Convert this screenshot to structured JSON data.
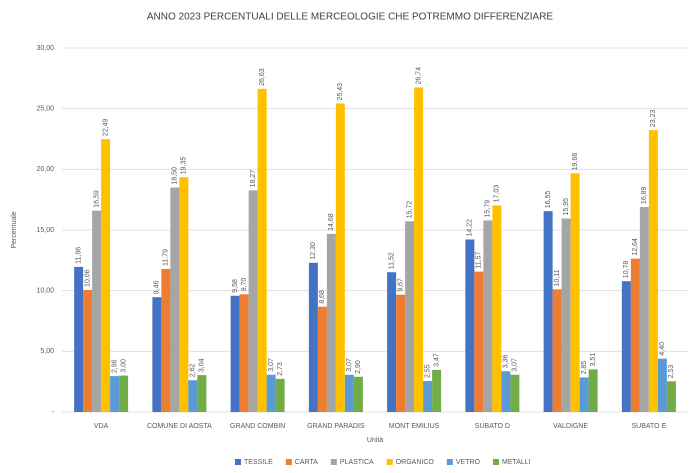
{
  "chart_data": {
    "type": "bar",
    "title": "ANNO 2023 PERCENTUALI DELLE MERCEOLOGIE CHE POTREMMO DIFFERENZIARE",
    "x_label": "Unità",
    "y_label": "Percentuale",
    "categories": [
      "VDA",
      "COMUNE DI AOSTA",
      "GRAND COMBIN",
      "GRAND PARADIS",
      "MONT EMILIUS",
      "SUBATO D",
      "VALDIGNE",
      "SUBATO E"
    ],
    "series": [
      {
        "name": "TESSILE",
        "color": "#4472c4",
        "values": [
          11.96,
          9.46,
          9.58,
          12.3,
          11.52,
          14.22,
          16.55,
          10.78
        ],
        "value_labels": [
          "11,96",
          "9,46",
          "9,58",
          "12,30",
          "11,52",
          "14,22",
          "16,55",
          "10,78"
        ]
      },
      {
        "name": "CARTA",
        "color": "#ed7d31",
        "values": [
          10.06,
          11.79,
          9.7,
          8.68,
          9.67,
          11.57,
          10.11,
          12.64
        ],
        "value_labels": [
          "10,06",
          "11,79",
          "9,70",
          "8,68",
          "9,67",
          "11,57",
          "10,11",
          "12,64"
        ]
      },
      {
        "name": "PLASTICA",
        "color": "#a5a5a5",
        "values": [
          16.59,
          18.5,
          18.27,
          14.68,
          15.72,
          15.79,
          15.95,
          16.89
        ],
        "value_labels": [
          "16,59",
          "18,50",
          "18,27",
          "14,68",
          "15,72",
          "15,79",
          "15,95",
          "16,89"
        ]
      },
      {
        "name": "ORGANICO",
        "color": "#ffc000",
        "values": [
          22.49,
          19.35,
          26.63,
          25.43,
          26.74,
          17.03,
          19.68,
          23.23
        ],
        "value_labels": [
          "22,49",
          "19,35",
          "26,63",
          "25,43",
          "26,74",
          "17,03",
          "19,68",
          "23,23"
        ]
      },
      {
        "name": "VETRO",
        "color": "#5b9bd5",
        "values": [
          2.96,
          2.62,
          3.07,
          3.07,
          2.55,
          3.36,
          2.85,
          4.4
        ],
        "value_labels": [
          "2,96",
          "2,62",
          "3,07",
          "3,07",
          "2,55",
          "3,36",
          "2,85",
          "4,40"
        ]
      },
      {
        "name": "METALLI",
        "color": "#70ad47",
        "values": [
          3.0,
          3.04,
          2.73,
          2.9,
          3.47,
          3.07,
          3.51,
          2.53
        ],
        "value_labels": [
          "3,00",
          "3,04",
          "2,73",
          "2,90",
          "3,47",
          "3,07",
          "3,51",
          "2,53"
        ]
      }
    ],
    "ylim": [
      0,
      30
    ],
    "yticks": [
      {
        "value": 0,
        "label": "-"
      },
      {
        "value": 5,
        "label": "5,00"
      },
      {
        "value": 10,
        "label": "10,00"
      },
      {
        "value": 15,
        "label": "15,00"
      },
      {
        "value": 20,
        "label": "20,00"
      },
      {
        "value": 25,
        "label": "25,00"
      },
      {
        "value": 30,
        "label": "30,00"
      }
    ],
    "grid": true,
    "legend": "bottom"
  }
}
